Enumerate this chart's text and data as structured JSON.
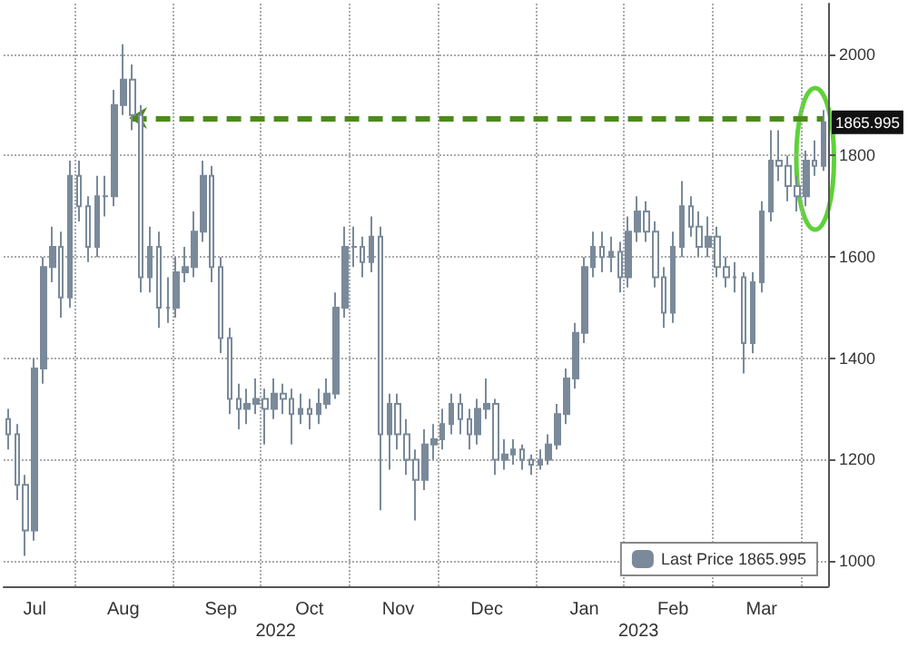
{
  "chart_data": {
    "type": "candlestick",
    "categories": [
      null,
      null,
      null,
      "Jul",
      null,
      null,
      null,
      null,
      null,
      null,
      null,
      null,
      null,
      "Aug",
      null,
      null,
      null,
      null,
      null,
      null,
      null,
      null,
      null,
      null,
      "Sep",
      null,
      null,
      null,
      null,
      null,
      null,
      null,
      null,
      null,
      "Oct",
      null,
      null,
      null,
      null,
      null,
      null,
      null,
      null,
      null,
      "Nov",
      null,
      null,
      null,
      null,
      null,
      null,
      null,
      null,
      null,
      "Dec",
      null,
      null,
      null,
      null,
      null,
      null,
      null,
      null,
      null,
      null,
      "Jan",
      null,
      null,
      null,
      null,
      null,
      null,
      null,
      null,
      null,
      "Feb",
      null,
      null,
      null,
      null,
      null,
      null,
      null,
      null,
      null,
      "Mar",
      null,
      null,
      null,
      null,
      null,
      null,
      null
    ],
    "series": [
      {
        "name": "Last Price 1865.995",
        "color": "#7a8a9a",
        "ohlc": [
          [
            1280,
            1300,
            1220,
            1250
          ],
          [
            1250,
            1270,
            1120,
            1150
          ],
          [
            1150,
            1170,
            1010,
            1060
          ],
          [
            1060,
            1400,
            1040,
            1380
          ],
          [
            1380,
            1600,
            1350,
            1580
          ],
          [
            1580,
            1660,
            1550,
            1620
          ],
          [
            1620,
            1650,
            1480,
            1520
          ],
          [
            1520,
            1790,
            1500,
            1760
          ],
          [
            1760,
            1790,
            1670,
            1700
          ],
          [
            1700,
            1720,
            1590,
            1620
          ],
          [
            1620,
            1760,
            1600,
            1720
          ],
          [
            1720,
            1760,
            1680,
            1720
          ],
          [
            1720,
            1930,
            1700,
            1900
          ],
          [
            1900,
            2020,
            1880,
            1950
          ],
          [
            1950,
            1980,
            1850,
            1880
          ],
          [
            1880,
            1900,
            1530,
            1560
          ],
          [
            1560,
            1660,
            1530,
            1620
          ],
          [
            1620,
            1650,
            1460,
            1500
          ],
          [
            1500,
            1560,
            1470,
            1500
          ],
          [
            1500,
            1600,
            1480,
            1570
          ],
          [
            1570,
            1620,
            1550,
            1580
          ],
          [
            1580,
            1690,
            1560,
            1650
          ],
          [
            1650,
            1790,
            1630,
            1760
          ],
          [
            1760,
            1780,
            1550,
            1580
          ],
          [
            1580,
            1600,
            1410,
            1440
          ],
          [
            1440,
            1460,
            1290,
            1320
          ],
          [
            1320,
            1350,
            1260,
            1300
          ],
          [
            1300,
            1340,
            1270,
            1310
          ],
          [
            1310,
            1360,
            1290,
            1320
          ],
          [
            1320,
            1340,
            1230,
            1300
          ],
          [
            1300,
            1360,
            1280,
            1330
          ],
          [
            1330,
            1350,
            1290,
            1320
          ],
          [
            1320,
            1340,
            1230,
            1290
          ],
          [
            1290,
            1330,
            1270,
            1300
          ],
          [
            1300,
            1320,
            1260,
            1290
          ],
          [
            1290,
            1340,
            1270,
            1310
          ],
          [
            1310,
            1360,
            1300,
            1330
          ],
          [
            1330,
            1530,
            1320,
            1500
          ],
          [
            1500,
            1660,
            1480,
            1620
          ],
          [
            1620,
            1660,
            1580,
            1620
          ],
          [
            1620,
            1640,
            1560,
            1590
          ],
          [
            1590,
            1680,
            1570,
            1640
          ],
          [
            1640,
            1660,
            1100,
            1250
          ],
          [
            1250,
            1330,
            1180,
            1310
          ],
          [
            1310,
            1330,
            1220,
            1250
          ],
          [
            1250,
            1280,
            1170,
            1200
          ],
          [
            1200,
            1220,
            1080,
            1160
          ],
          [
            1160,
            1260,
            1140,
            1230
          ],
          [
            1230,
            1270,
            1200,
            1240
          ],
          [
            1240,
            1300,
            1220,
            1270
          ],
          [
            1270,
            1330,
            1250,
            1310
          ],
          [
            1310,
            1330,
            1250,
            1280
          ],
          [
            1280,
            1300,
            1220,
            1250
          ],
          [
            1250,
            1320,
            1230,
            1300
          ],
          [
            1300,
            1360,
            1280,
            1310
          ],
          [
            1310,
            1320,
            1170,
            1200
          ],
          [
            1200,
            1240,
            1180,
            1210
          ],
          [
            1210,
            1240,
            1190,
            1220
          ],
          [
            1220,
            1230,
            1180,
            1200
          ],
          [
            1200,
            1210,
            1170,
            1190
          ],
          [
            1190,
            1220,
            1180,
            1200
          ],
          [
            1200,
            1250,
            1190,
            1230
          ],
          [
            1230,
            1310,
            1220,
            1290
          ],
          [
            1290,
            1380,
            1270,
            1360
          ],
          [
            1360,
            1470,
            1340,
            1450
          ],
          [
            1450,
            1600,
            1430,
            1580
          ],
          [
            1580,
            1650,
            1560,
            1620
          ],
          [
            1620,
            1650,
            1570,
            1600
          ],
          [
            1600,
            1640,
            1570,
            1610
          ],
          [
            1610,
            1630,
            1530,
            1560
          ],
          [
            1560,
            1680,
            1540,
            1650
          ],
          [
            1650,
            1720,
            1630,
            1690
          ],
          [
            1690,
            1710,
            1630,
            1650
          ],
          [
            1650,
            1670,
            1540,
            1560
          ],
          [
            1560,
            1580,
            1460,
            1490
          ],
          [
            1490,
            1650,
            1470,
            1620
          ],
          [
            1620,
            1750,
            1600,
            1700
          ],
          [
            1700,
            1720,
            1640,
            1660
          ],
          [
            1660,
            1690,
            1600,
            1620
          ],
          [
            1620,
            1680,
            1600,
            1640
          ],
          [
            1640,
            1660,
            1560,
            1580
          ],
          [
            1580,
            1600,
            1540,
            1560
          ],
          [
            1560,
            1590,
            1530,
            1560
          ],
          [
            1560,
            1570,
            1370,
            1430
          ],
          [
            1430,
            1570,
            1410,
            1550
          ],
          [
            1550,
            1710,
            1530,
            1690
          ],
          [
            1690,
            1850,
            1670,
            1790
          ],
          [
            1790,
            1850,
            1750,
            1780
          ],
          [
            1780,
            1800,
            1710,
            1740
          ],
          [
            1740,
            1760,
            1690,
            1720
          ],
          [
            1720,
            1810,
            1700,
            1790
          ],
          [
            1790,
            1830,
            1760,
            1780
          ],
          [
            1780,
            1890,
            1770,
            1865.995
          ]
        ]
      }
    ],
    "ylim": [
      950,
      2100
    ],
    "yticks": [
      1000,
      1200,
      1400,
      1600,
      1800,
      2000
    ],
    "grid": true,
    "legend": "bottom right",
    "ref_lines": [
      {
        "axis": "y",
        "value": 1875,
        "color": "#4d8a1c",
        "line_style": "dashed"
      }
    ],
    "annotations": [
      "2022",
      "2023",
      {
        "text": "1865.995",
        "y": 1865.995
      }
    ]
  }
}
